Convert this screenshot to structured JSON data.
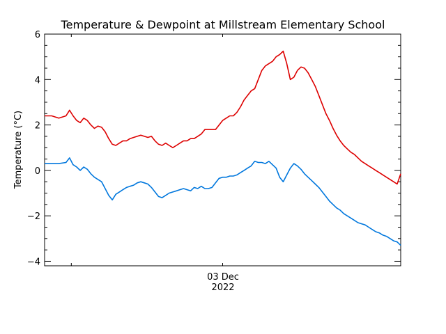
{
  "chart_data": {
    "type": "line",
    "title": "Temperature & Dewpoint at Millstream Elementary School",
    "ylabel": "Temperature (°C)",
    "xlabel": "",
    "ylim": [
      -4.2,
      6.0
    ],
    "yticks": [
      -4,
      -2,
      0,
      2,
      4,
      6
    ],
    "y_tick_labels": [
      "−4",
      "−2",
      "0",
      "2",
      "4",
      "6"
    ],
    "x_tick_label": [
      "03 Dec",
      "2022"
    ],
    "grid": false,
    "series": [
      {
        "color": "#dd0000",
        "x": [
          0,
          0.02,
          0.04,
          0.06,
          0.07,
          0.08,
          0.09,
          0.1,
          0.11,
          0.12,
          0.13,
          0.14,
          0.15,
          0.16,
          0.17,
          0.18,
          0.19,
          0.2,
          0.21,
          0.22,
          0.23,
          0.24,
          0.25,
          0.26,
          0.27,
          0.28,
          0.29,
          0.3,
          0.31,
          0.32,
          0.33,
          0.34,
          0.35,
          0.36,
          0.37,
          0.38,
          0.39,
          0.4,
          0.41,
          0.42,
          0.43,
          0.44,
          0.45,
          0.46,
          0.47,
          0.48,
          0.49,
          0.5,
          0.51,
          0.52,
          0.53,
          0.54,
          0.55,
          0.56,
          0.57,
          0.58,
          0.59,
          0.6,
          0.61,
          0.62,
          0.63,
          0.64,
          0.65,
          0.66,
          0.67,
          0.68,
          0.69,
          0.7,
          0.71,
          0.72,
          0.73,
          0.74,
          0.75,
          0.76,
          0.77,
          0.78,
          0.79,
          0.8,
          0.81,
          0.82,
          0.83,
          0.84,
          0.85,
          0.86,
          0.87,
          0.88,
          0.89,
          0.9,
          0.91,
          0.92,
          0.93,
          0.94,
          0.95,
          0.96,
          0.97,
          0.98,
          0.99,
          1.0
        ],
        "values": [
          2.4,
          2.4,
          2.3,
          2.4,
          2.65,
          2.4,
          2.2,
          2.1,
          2.3,
          2.2,
          2.0,
          1.85,
          1.95,
          1.9,
          1.7,
          1.4,
          1.15,
          1.1,
          1.2,
          1.3,
          1.3,
          1.4,
          1.45,
          1.5,
          1.55,
          1.5,
          1.45,
          1.5,
          1.3,
          1.15,
          1.1,
          1.2,
          1.1,
          1.0,
          1.1,
          1.2,
          1.3,
          1.3,
          1.4,
          1.4,
          1.5,
          1.6,
          1.8,
          1.8,
          1.8,
          1.8,
          2.0,
          2.2,
          2.3,
          2.4,
          2.4,
          2.55,
          2.8,
          3.1,
          3.3,
          3.5,
          3.6,
          4.0,
          4.4,
          4.6,
          4.7,
          4.8,
          5.0,
          5.1,
          5.25,
          4.7,
          4.0,
          4.1,
          4.4,
          4.55,
          4.5,
          4.3,
          4.0,
          3.7,
          3.3,
          2.9,
          2.5,
          2.2,
          1.85,
          1.55,
          1.3,
          1.1,
          0.95,
          0.8,
          0.7,
          0.55,
          0.4,
          0.3,
          0.2,
          0.1,
          0.0,
          -0.1,
          -0.2,
          -0.3,
          -0.4,
          -0.5,
          -0.6,
          -0.15
        ]
      },
      {
        "color": "#0077dd",
        "x": [
          0,
          0.02,
          0.04,
          0.06,
          0.07,
          0.08,
          0.09,
          0.1,
          0.11,
          0.12,
          0.13,
          0.14,
          0.15,
          0.16,
          0.17,
          0.18,
          0.19,
          0.2,
          0.21,
          0.22,
          0.23,
          0.24,
          0.25,
          0.26,
          0.27,
          0.28,
          0.29,
          0.3,
          0.31,
          0.32,
          0.33,
          0.34,
          0.35,
          0.36,
          0.37,
          0.38,
          0.39,
          0.4,
          0.41,
          0.42,
          0.43,
          0.44,
          0.45,
          0.46,
          0.47,
          0.48,
          0.49,
          0.5,
          0.51,
          0.52,
          0.53,
          0.54,
          0.55,
          0.56,
          0.57,
          0.58,
          0.59,
          0.6,
          0.61,
          0.62,
          0.63,
          0.64,
          0.65,
          0.66,
          0.67,
          0.68,
          0.69,
          0.7,
          0.71,
          0.72,
          0.73,
          0.74,
          0.75,
          0.76,
          0.77,
          0.78,
          0.79,
          0.8,
          0.81,
          0.82,
          0.83,
          0.84,
          0.85,
          0.86,
          0.87,
          0.88,
          0.89,
          0.9,
          0.91,
          0.92,
          0.93,
          0.94,
          0.95,
          0.96,
          0.97,
          0.98,
          0.99,
          1.0
        ],
        "values": [
          0.3,
          0.3,
          0.3,
          0.35,
          0.55,
          0.25,
          0.15,
          0.0,
          0.15,
          0.05,
          -0.15,
          -0.3,
          -0.4,
          -0.5,
          -0.8,
          -1.1,
          -1.3,
          -1.05,
          -0.95,
          -0.85,
          -0.75,
          -0.7,
          -0.65,
          -0.55,
          -0.5,
          -0.55,
          -0.6,
          -0.75,
          -0.95,
          -1.15,
          -1.2,
          -1.1,
          -1.0,
          -0.95,
          -0.9,
          -0.85,
          -0.8,
          -0.85,
          -0.9,
          -0.75,
          -0.8,
          -0.7,
          -0.8,
          -0.8,
          -0.75,
          -0.55,
          -0.35,
          -0.3,
          -0.3,
          -0.25,
          -0.25,
          -0.2,
          -0.1,
          0.0,
          0.1,
          0.2,
          0.4,
          0.35,
          0.35,
          0.3,
          0.4,
          0.25,
          0.1,
          -0.3,
          -0.5,
          -0.2,
          0.1,
          0.3,
          0.2,
          0.05,
          -0.15,
          -0.3,
          -0.45,
          -0.6,
          -0.75,
          -0.95,
          -1.15,
          -1.35,
          -1.5,
          -1.65,
          -1.75,
          -1.9,
          -2.0,
          -2.1,
          -2.2,
          -2.3,
          -2.35,
          -2.4,
          -2.5,
          -2.6,
          -2.7,
          -2.75,
          -2.85,
          -2.9,
          -3.0,
          -3.1,
          -3.15,
          -3.3
        ]
      }
    ]
  }
}
